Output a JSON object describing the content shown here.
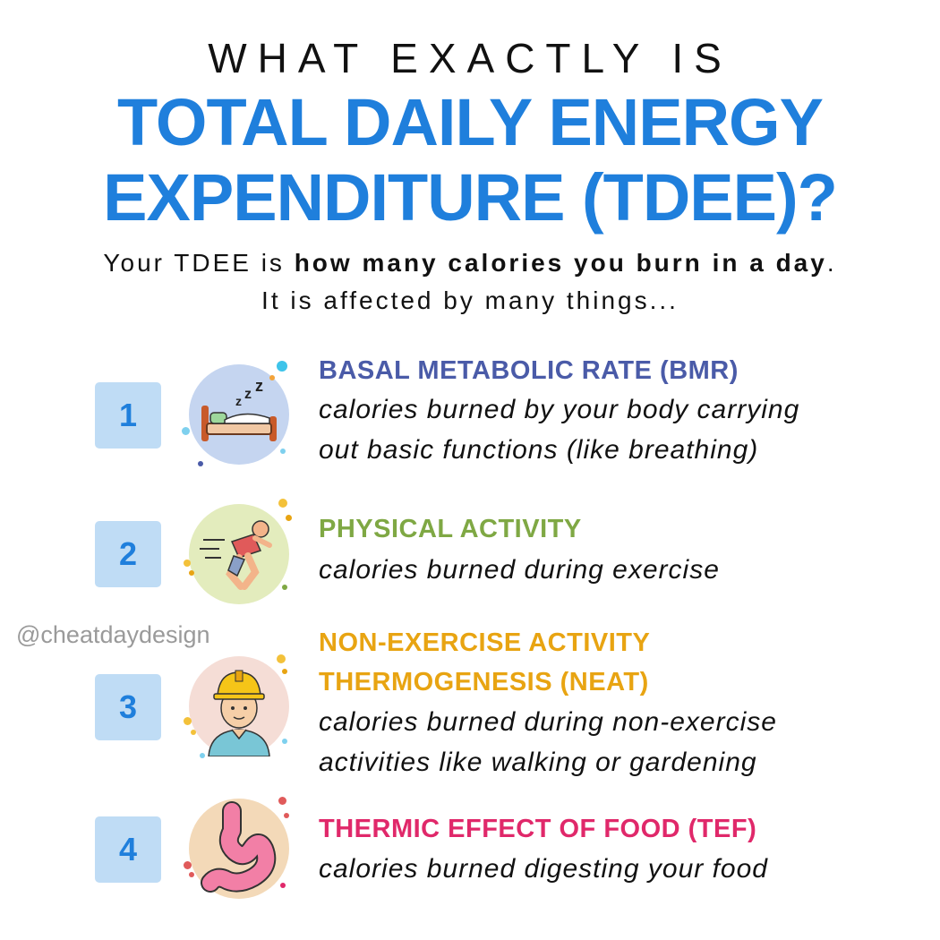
{
  "header": {
    "kicker": "WHAT EXACTLY IS",
    "title_line1": "TOTAL DAILY ENERGY",
    "title_line2": "EXPENDITURE (TDEE)?"
  },
  "intro": {
    "line1_pre": "Your TDEE is ",
    "line1_bold": "how many calories you burn in a day",
    "line1_post": ".",
    "line2": "It is affected by many things..."
  },
  "watermark": "@cheatdaydesign",
  "colors": {
    "title_blue": "#1f7fdc",
    "bmr": "#4a5ba8",
    "activity": "#7fa844",
    "neat": "#e8a412",
    "tef": "#e0286a",
    "number_box": "#bfdcf5"
  },
  "items": [
    {
      "number": "1",
      "icon": "sleeping-bed-icon",
      "title_line1": "BASAL METABOLIC RATE (BMR)",
      "title_line2": "",
      "desc_line1": "calories burned by your body carrying",
      "desc_line2": "out basic functions (like breathing)"
    },
    {
      "number": "2",
      "icon": "running-person-icon",
      "title_line1": "PHYSICAL ACTIVITY",
      "title_line2": "",
      "desc_line1": "calories burned during exercise",
      "desc_line2": ""
    },
    {
      "number": "3",
      "icon": "construction-worker-icon",
      "title_line1": "NON-EXERCISE ACTIVITY",
      "title_line2": "THERMOGENESIS (NEAT)",
      "desc_line1": "calories burned during non-exercise",
      "desc_line2": "activities like walking or gardening"
    },
    {
      "number": "4",
      "icon": "stomach-icon",
      "title_line1": "THERMIC EFFECT OF FOOD (TEF)",
      "title_line2": "",
      "desc_line1": "calories burned digesting your food",
      "desc_line2": ""
    }
  ]
}
